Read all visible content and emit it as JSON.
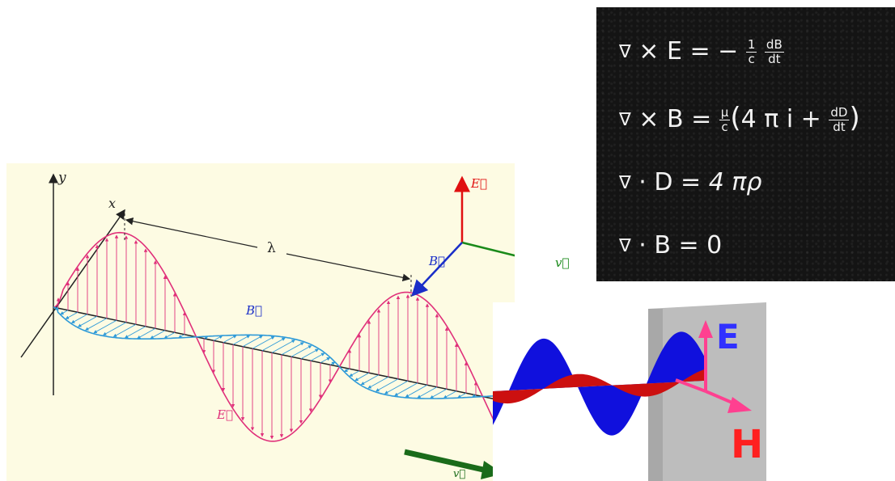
{
  "wave_diagram": {
    "axis_y_label": "y",
    "axis_x_label": "x",
    "wavelength_label": "λ",
    "electric_field_label": "E⃗",
    "magnetic_field_label": "B⃗",
    "velocity_label": "v⃗",
    "triad": {
      "e_label": "E⃗",
      "b_label": "B⃗",
      "v_label": "v⃗"
    },
    "colors": {
      "electric": "#e0307a",
      "magnetic": "#2e9ad8",
      "triad_e": "#e01010",
      "triad_b": "#1a2ec8",
      "triad_v": "#1a8a1a",
      "velocity_arrow": "#1a6b1a",
      "panel_bg": "#fdfbe3"
    }
  },
  "maxwell_equations": {
    "lines": [
      {
        "op": "×",
        "lhs": "E",
        "rhs_prefix": "= −",
        "frac1_num": "1",
        "frac1_den": "c",
        "frac2_num": "dB",
        "frac2_den": "dt"
      },
      {
        "op": "×",
        "lhs": "B",
        "rhs_prefix": "=",
        "frac1_num": "μ",
        "frac1_den": "c",
        "paren_text": "4 π i +",
        "frac2_num": "dD",
        "frac2_den": "dt"
      },
      {
        "op": "·",
        "lhs": "D",
        "rhs": "= 4 πρ"
      },
      {
        "op": "·",
        "lhs": "B",
        "rhs": "= 0"
      }
    ],
    "nabla": "∇"
  },
  "em_wave_3d": {
    "e_label": "E",
    "h_label": "H",
    "colors": {
      "e_wave": "#1010dd",
      "h_wave": "#cc1010",
      "axes": "#ff4090",
      "e_text": "#3030ff",
      "h_text": "#ff2020",
      "wall": "#bdbdbd"
    }
  }
}
